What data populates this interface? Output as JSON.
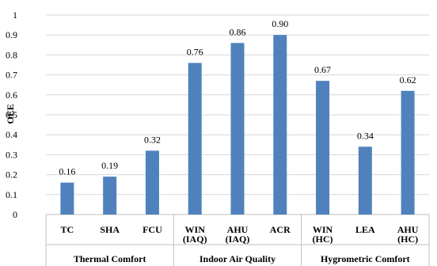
{
  "chart_data": {
    "type": "bar",
    "ylabel": "OEE",
    "ylim": [
      0,
      1
    ],
    "yticks": [
      "0",
      "0.1",
      "0.2",
      "0.3",
      "0.4",
      "0.5",
      "0.6",
      "0.7",
      "0.8",
      "0.9",
      "1"
    ],
    "grid": true,
    "bar_color": "#4F81BD",
    "categories": [
      {
        "line1": "TC",
        "line2": ""
      },
      {
        "line1": "SHA",
        "line2": ""
      },
      {
        "line1": "FCU",
        "line2": ""
      },
      {
        "line1": "WIN",
        "line2": "(IAQ)"
      },
      {
        "line1": "AHU",
        "line2": "(IAQ)"
      },
      {
        "line1": "ACR",
        "line2": ""
      },
      {
        "line1": "WIN",
        "line2": "(HC)"
      },
      {
        "line1": "LEA",
        "line2": ""
      },
      {
        "line1": "AHU",
        "line2": "(HC)"
      }
    ],
    "values": [
      0.16,
      0.19,
      0.32,
      0.76,
      0.86,
      0.9,
      0.67,
      0.34,
      0.62
    ],
    "data_labels": [
      "0.16",
      "0.19",
      "0.32",
      "0.76",
      "0.86",
      "0.90",
      "0.67",
      "0.34",
      "0.62"
    ],
    "groups": [
      {
        "label": "Thermal Comfort",
        "count": 3
      },
      {
        "label": "Indoor Air Quality",
        "count": 3
      },
      {
        "label": "Hygrometric Comfort",
        "count": 3
      }
    ]
  }
}
